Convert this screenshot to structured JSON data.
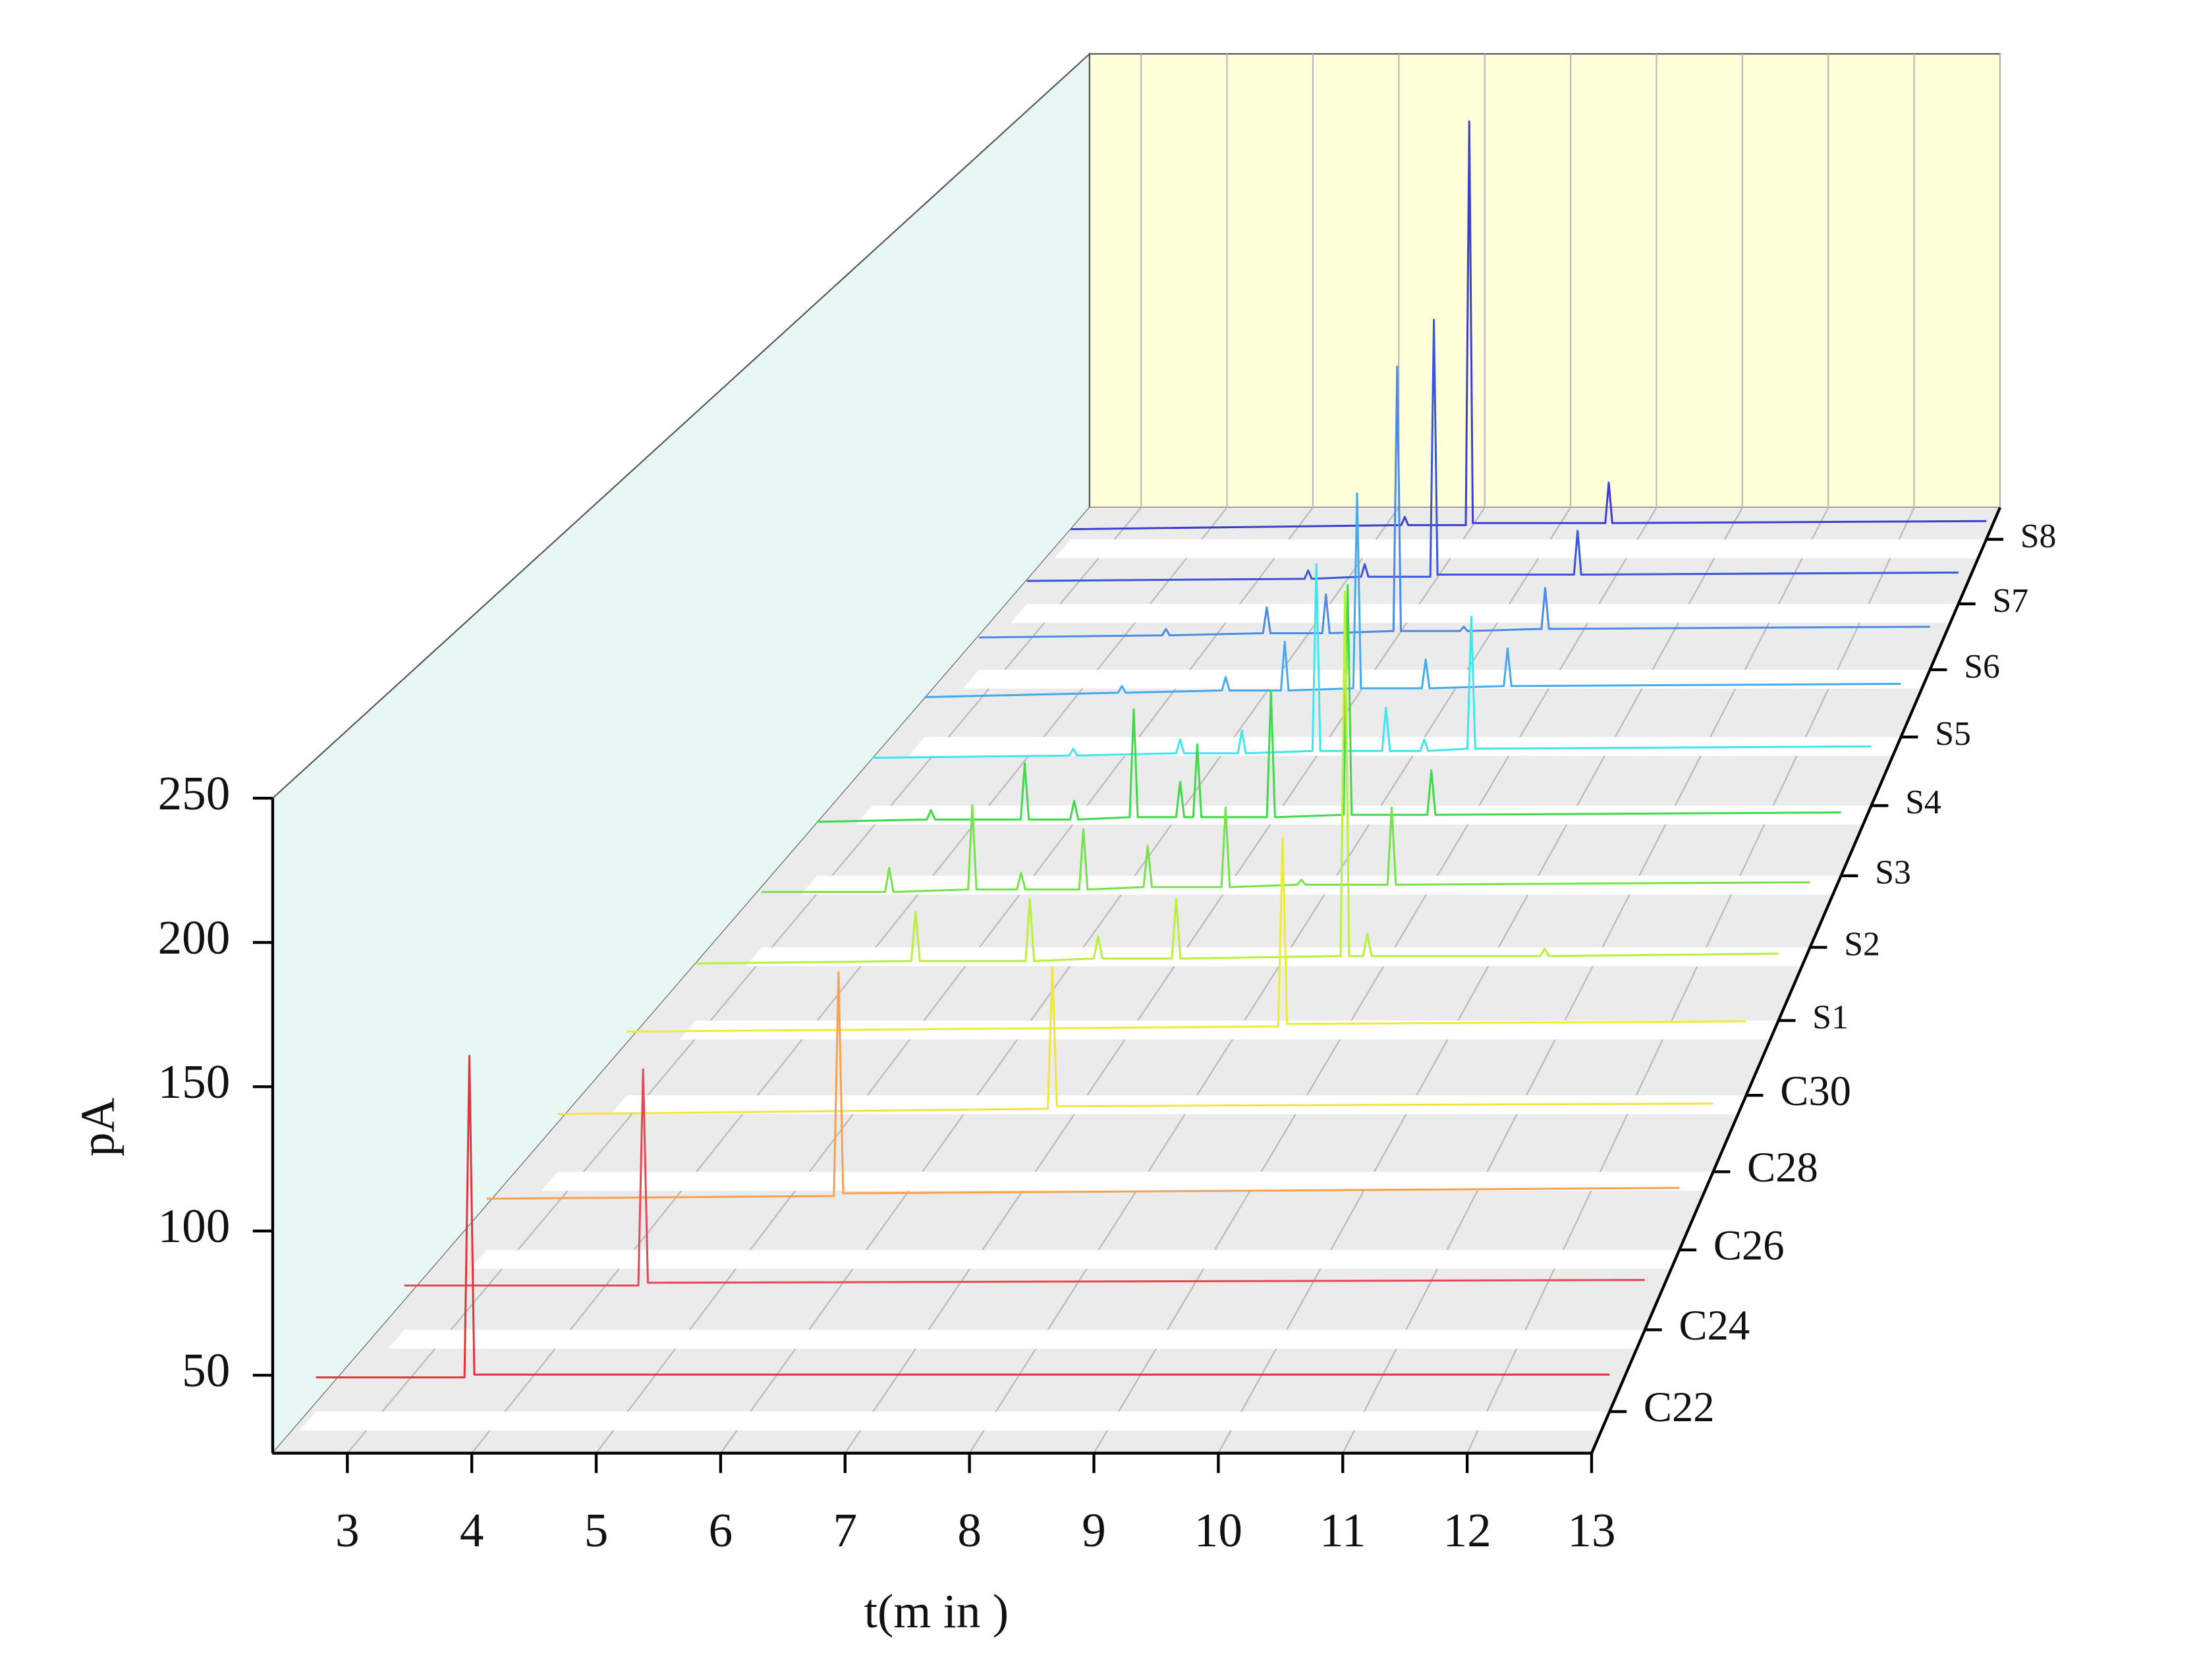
{
  "chart_data": {
    "type": "waterfall",
    "x_label": "t(m in )",
    "y_label": "pA",
    "xlim": [
      2.4,
      13
    ],
    "xticks": [
      3,
      4,
      5,
      6,
      7,
      8,
      9,
      10,
      11,
      12,
      13
    ],
    "ylim": [
      23,
      250
    ],
    "yticks": [
      50,
      100,
      150,
      200,
      250
    ],
    "grid": true,
    "series": [
      {
        "name": "C22",
        "color": "#e3343d",
        "x": [
          2.46,
          3.67,
          3.71,
          3.75,
          13
        ],
        "values": [
          35,
          35,
          148,
          36,
          36
        ]
      },
      {
        "name": "C24",
        "color": "#e34a55",
        "x": [
          2.61,
          4.57,
          4.61,
          4.65,
          13
        ],
        "values": [
          39,
          39,
          117,
          40,
          41
        ]
      },
      {
        "name": "C26",
        "color": "#f7a050",
        "x": [
          2.73,
          5.72,
          5.76,
          5.8,
          13
        ],
        "values": [
          42,
          43,
          126,
          44,
          46
        ]
      },
      {
        "name": "C28",
        "color": "#f2e440",
        "x": [
          2.77,
          7.11,
          7.15,
          7.19,
          13
        ],
        "values": [
          45,
          47,
          101,
          48,
          49
        ]
      },
      {
        "name": "C30",
        "color": "#ecec30",
        "x": [
          2.81,
          8.74,
          8.78,
          8.82,
          13
        ],
        "values": [
          48,
          50,
          124,
          51,
          52
        ]
      },
      {
        "name": "S1",
        "color": "#b9ef3f",
        "x": [
          2.86,
          4.88,
          4.92,
          4.96,
          5.95,
          5.99,
          6.03,
          6.59,
          6.63,
          6.67,
          7.32,
          7.36,
          7.4,
          8.9,
          8.94,
          8.98,
          9.11,
          9.15,
          9.19,
          10.77,
          10.81,
          10.85,
          13
        ],
        "values": [
          46,
          47,
          67,
          47,
          47,
          72,
          47,
          48,
          57,
          48,
          48,
          72,
          48,
          49,
          196,
          49,
          49,
          58,
          49,
          49,
          52,
          49,
          50
        ]
      },
      {
        "name": "S2",
        "color": "#74e34a",
        "x": [
          2.9,
          4.09,
          4.13,
          4.17,
          4.89,
          4.93,
          4.97,
          5.36,
          5.4,
          5.44,
          5.96,
          6.0,
          6.04,
          6.58,
          6.62,
          6.66,
          7.33,
          7.37,
          7.41,
          8.06,
          8.1,
          8.14,
          8.93,
          8.97,
          9.01,
          13
        ],
        "values": [
          46,
          46,
          56,
          46,
          47,
          82,
          47,
          47,
          54,
          47,
          47,
          72,
          47,
          48,
          65,
          48,
          48,
          81,
          48,
          49,
          51,
          49,
          49,
          81,
          49,
          50
        ]
      },
      {
        "name": "S3",
        "color": "#40d94c",
        "x": [
          2.85,
          3.94,
          3.98,
          4.02,
          4.87,
          4.91,
          4.95,
          5.36,
          5.4,
          5.44,
          5.95,
          5.99,
          6.03,
          6.41,
          6.45,
          6.49,
          6.58,
          6.62,
          6.66,
          7.31,
          7.35,
          7.39,
          8.07,
          8.11,
          8.15,
          8.9,
          8.94,
          8.98,
          13
        ],
        "values": [
          46,
          47,
          51,
          47,
          47,
          71,
          47,
          47,
          55,
          47,
          48,
          94,
          48,
          48,
          63,
          48,
          48,
          79,
          48,
          48,
          102,
          48,
          49,
          147,
          49,
          49,
          68,
          49,
          50
        ]
      },
      {
        "name": "S4",
        "color": "#3fe6ec",
        "x": [
          2.81,
          4.82,
          4.86,
          4.9,
          5.91,
          5.95,
          5.99,
          6.54,
          6.58,
          6.62,
          7.3,
          7.34,
          7.38,
          8.01,
          8.05,
          8.09,
          8.4,
          8.44,
          8.48,
          8.88,
          8.92,
          8.96,
          13
        ],
        "values": [
          44,
          45,
          48,
          45,
          46,
          52,
          46,
          46,
          56,
          46,
          47,
          129,
          47,
          47,
          66,
          47,
          47,
          52,
          47,
          48,
          106,
          48,
          49
        ]
      },
      {
        "name": "S5",
        "color": "#45a9ee",
        "x": [
          2.75,
          4.78,
          4.82,
          4.86,
          5.87,
          5.91,
          5.95,
          6.49,
          6.53,
          6.57,
          7.25,
          7.29,
          7.33,
          7.97,
          8.01,
          8.05,
          8.83,
          8.87,
          8.91,
          13
        ],
        "values": [
          41,
          43,
          46,
          43,
          44,
          50,
          44,
          44,
          66,
          44,
          45,
          133,
          45,
          45,
          58,
          45,
          46,
          63,
          46,
          47
        ]
      },
      {
        "name": "S6",
        "color": "#4a8be6",
        "x": [
          2.72,
          4.7,
          4.74,
          4.78,
          5.79,
          5.83,
          5.87,
          6.43,
          6.47,
          6.51,
          7.2,
          7.24,
          7.28,
          7.92,
          7.96,
          8.0,
          8.8,
          8.84,
          8.88,
          13
        ],
        "values": [
          38,
          39,
          42,
          39,
          40,
          52,
          40,
          40,
          58,
          40,
          41,
          164,
          41,
          41,
          43,
          41,
          42,
          61,
          42,
          43
        ]
      },
      {
        "name": "S7",
        "color": "#3856d6",
        "x": [
          2.63,
          5.72,
          5.76,
          5.8,
          6.35,
          6.39,
          6.43,
          7.12,
          7.16,
          7.2,
          8.72,
          8.76,
          8.8,
          13
        ],
        "values": [
          34,
          35,
          39,
          35,
          36,
          42,
          36,
          36,
          159,
          37,
          37,
          58,
          37,
          38
        ]
      },
      {
        "name": "S8",
        "color": "#3d3fcc",
        "x": [
          2.5,
          6.29,
          6.33,
          6.37,
          7.03,
          7.07,
          7.11,
          8.63,
          8.67,
          8.71,
          13
        ],
        "values": [
          28,
          30,
          34,
          30,
          30,
          229,
          31,
          31,
          51,
          31,
          32
        ]
      }
    ]
  }
}
